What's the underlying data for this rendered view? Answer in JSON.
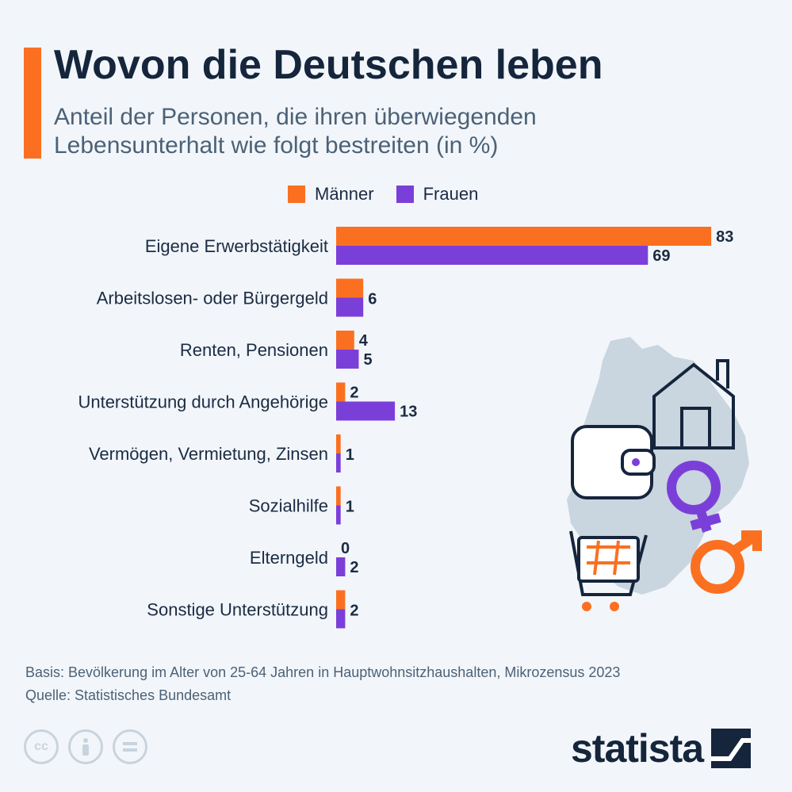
{
  "header": {
    "title": "Wovon die Deutschen leben",
    "subtitle": "Anteil der Personen, die ihren überwiegenden Lebensunterhalt wie folgt bestreiten (in %)"
  },
  "colors": {
    "men": "#fb7020",
    "women": "#7b3fd9",
    "accent": "#fb7020"
  },
  "chart_data": {
    "type": "bar",
    "orientation": "horizontal",
    "categories": [
      "Eigene Erwerbstätigkeit",
      "Arbeitslosen- oder Bürgergeld",
      "Renten, Pensionen",
      "Unterstützung durch Angehörige",
      "Vermögen, Vermietung, Zinsen",
      "Sozialhilfe",
      "Elterngeld",
      "Sonstige Unterstützung"
    ],
    "series": [
      {
        "name": "Männer",
        "values": [
          83,
          6,
          4,
          2,
          1,
          1,
          0,
          2
        ]
      },
      {
        "name": "Frauen",
        "values": [
          69,
          6,
          5,
          13,
          1,
          1,
          2,
          2
        ]
      }
    ],
    "data_labels": [
      [
        "83",
        "69"
      ],
      [
        "6"
      ],
      [
        "4",
        "5"
      ],
      [
        "2",
        "13"
      ],
      [
        "1"
      ],
      [
        "1"
      ],
      [
        "0",
        "2"
      ],
      [
        "2"
      ]
    ],
    "legend_position": "top",
    "grid": false
  },
  "footer": {
    "basis": "Basis: Bevölkerung im Alter von 25-64 Jahren in Hauptwohnsitzhaushalten, Mikrozensus 2023",
    "source": "Quelle: Statistisches Bundesamt"
  },
  "license_icons": [
    "cc-icon",
    "by-icon",
    "nd-icon"
  ],
  "brand": {
    "name": "statista"
  }
}
